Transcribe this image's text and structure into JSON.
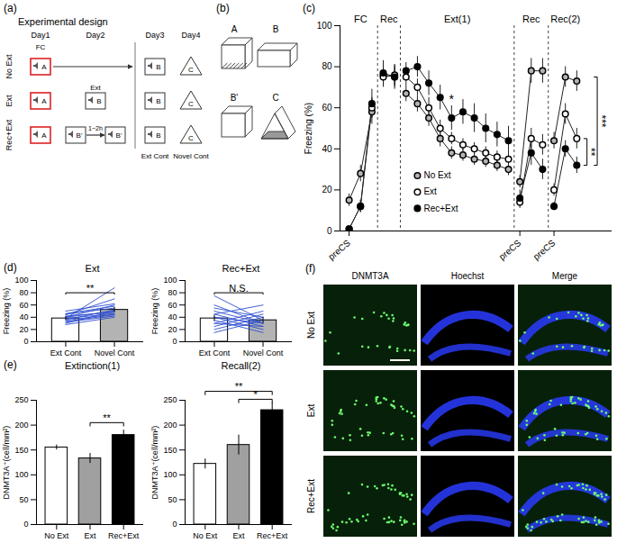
{
  "chart_data": [
    {
      "panel": "(c)",
      "type": "line",
      "ylabel": "Freezing (%)",
      "ylim": [
        0,
        100
      ],
      "yticks": [
        0,
        20,
        40,
        60,
        80,
        100
      ],
      "categories": [
        "preCS",
        null,
        null,
        null,
        null,
        null,
        null,
        null,
        null,
        null,
        null,
        null,
        null,
        null,
        null,
        "preCS",
        null,
        null,
        "preCS",
        null,
        null
      ],
      "sections": [
        "FC",
        "FC",
        "FC",
        "Rec",
        "Rec",
        "Ext(1)",
        "Ext(1)",
        "Ext(1)",
        "Ext(1)",
        "Ext(1)",
        "Ext(1)",
        "Ext(1)",
        "Ext(1)",
        "Ext(1)",
        "Ext(1)",
        "Rec",
        "Rec",
        "Rec",
        "Rec(2)",
        "Rec(2)",
        "Rec(2)"
      ],
      "series": [
        {
          "name": "No Ext",
          "color": "#b3b3b3",
          "marker": "circle",
          "values": [
            15,
            28,
            58,
            76,
            75,
            67,
            62,
            55,
            45,
            38,
            37,
            35,
            34,
            32,
            30,
            24,
            78,
            78,
            44,
            75,
            73
          ],
          "errors": [
            3,
            4,
            6,
            4,
            5,
            4,
            4,
            4,
            4,
            3,
            3,
            3,
            3,
            3,
            3,
            3,
            6,
            6,
            4,
            5,
            5
          ]
        },
        {
          "name": "Ext",
          "color": "#ffffff",
          "marker": "circle",
          "values": [
            1,
            12,
            60,
            75,
            76,
            75,
            70,
            60,
            50,
            45,
            42,
            40,
            38,
            36,
            35,
            14,
            45,
            42,
            20,
            57,
            45
          ],
          "errors": [
            1,
            3,
            5,
            5,
            5,
            4,
            4,
            5,
            4,
            3,
            3,
            3,
            3,
            3,
            3,
            3,
            5,
            5,
            3,
            5,
            5
          ]
        },
        {
          "name": "Rec+Ext",
          "color": "#000000",
          "marker": "circle",
          "values": [
            1,
            12,
            62,
            77,
            75,
            78,
            80,
            72,
            65,
            55,
            58,
            55,
            50,
            47,
            44,
            16,
            38,
            30,
            12,
            40,
            32
          ],
          "errors": [
            1,
            3,
            7,
            6,
            6,
            4,
            5,
            6,
            6,
            6,
            6,
            7,
            7,
            6,
            7,
            4,
            6,
            5,
            2,
            4,
            4
          ]
        }
      ],
      "annotations": [
        {
          "text": "*",
          "x": 9,
          "y": 64
        }
      ],
      "significance": [
        {
          "text": "**",
          "y1": 45,
          "y2": 32
        },
        {
          "text": "***",
          "y1": 75,
          "y2": 32
        }
      ],
      "legend": "bottom"
    },
    {
      "panel": "(d)",
      "type": "bar",
      "title": "Ext",
      "ylabel": "Freezing (%)",
      "ylim": [
        0,
        100
      ],
      "yticks": [
        0,
        20,
        40,
        60,
        80,
        100
      ],
      "categories": [
        "Ext Cont",
        "Novel Cont"
      ],
      "values": [
        38,
        52
      ],
      "errors": [
        3,
        4
      ],
      "colors": [
        "#ffffff",
        "#b3b3b3"
      ],
      "paired_lines": {
        "color": "#2f4fd0",
        "values": [
          [
            35,
            45
          ],
          [
            40,
            60
          ],
          [
            30,
            50
          ],
          [
            45,
            55
          ],
          [
            38,
            88
          ],
          [
            42,
            48
          ],
          [
            28,
            40
          ],
          [
            50,
            62
          ],
          [
            36,
            52
          ],
          [
            33,
            44
          ],
          [
            44,
            70
          ],
          [
            40,
            50
          ],
          [
            32,
            42
          ],
          [
            46,
            58
          ],
          [
            38,
            46
          ]
        ]
      },
      "significance": [
        {
          "from": "Ext Cont",
          "to": "Novel Cont",
          "text": "**",
          "y": 80
        }
      ]
    },
    {
      "type": "bar",
      "title": "Rec+Ext",
      "ylabel": "Freezing (%)",
      "ylim": [
        0,
        100
      ],
      "yticks": [
        0,
        20,
        40,
        60,
        80,
        100
      ],
      "categories": [
        "Ext Cont",
        "Novel Cont"
      ],
      "values": [
        38,
        35
      ],
      "errors": [
        5,
        5
      ],
      "colors": [
        "#ffffff",
        "#b3b3b3"
      ],
      "paired_lines": {
        "color": "#2f4fd0",
        "values": [
          [
            20,
            40
          ],
          [
            60,
            30
          ],
          [
            45,
            25
          ],
          [
            30,
            50
          ],
          [
            75,
            35
          ],
          [
            40,
            20
          ],
          [
            25,
            45
          ],
          [
            55,
            40
          ],
          [
            35,
            15
          ],
          [
            50,
            30
          ],
          [
            15,
            35
          ],
          [
            45,
            60
          ],
          [
            30,
            25
          ],
          [
            40,
            30
          ]
        ]
      },
      "significance": [
        {
          "from": "Ext Cont",
          "to": "Novel Cont",
          "text": "N.S.",
          "y": 80
        }
      ]
    },
    {
      "panel": "(e)",
      "type": "bar",
      "title": "Extinction(1)",
      "ylabel": "DNMT3A⁺(cell/mm²)",
      "ylim": [
        0,
        250
      ],
      "yticks": [
        0,
        50,
        100,
        150,
        200,
        250
      ],
      "categories": [
        "No Ext",
        "Ext",
        "Rec+Ext"
      ],
      "values": [
        155,
        133,
        180
      ],
      "errors": [
        5,
        10,
        10
      ],
      "colors": [
        "#ffffff",
        "#a0a0a0",
        "#000000"
      ],
      "significance": [
        {
          "from": "Ext",
          "to": "Rec+Ext",
          "text": "**",
          "y": 205
        }
      ]
    },
    {
      "type": "bar",
      "title": "Recall(2)",
      "ylabel": "DNMT3A⁺(cell/mm²)",
      "ylim": [
        0,
        250
      ],
      "yticks": [
        0,
        50,
        100,
        150,
        200,
        250
      ],
      "categories": [
        "No Ext",
        "Ext",
        "Rec+Ext"
      ],
      "values": [
        122,
        160,
        230
      ],
      "errors": [
        10,
        20,
        15
      ],
      "colors": [
        "#ffffff",
        "#a0a0a0",
        "#000000"
      ],
      "significance": [
        {
          "from": "Ext",
          "to": "Rec+Ext",
          "text": "*",
          "y": 252
        },
        {
          "from": "No Ext",
          "to": "Rec+Ext",
          "text": "**",
          "y": 268
        }
      ]
    }
  ],
  "diagrams": {
    "a": {
      "label": "(a)",
      "title": "Experimental design",
      "days": [
        "Day1",
        "Day2",
        "Day3",
        "Day4"
      ],
      "conditioning": "FC",
      "extinction": "Ext",
      "interval": "1~2h",
      "context_columns": [
        "Ext Cont",
        "Novel Cont"
      ],
      "rows": [
        {
          "name": "No Ext",
          "contexts": [
            [
              "A"
            ],
            [],
            [
              "B"
            ],
            [
              "C"
            ]
          ]
        },
        {
          "name": "Ext",
          "contexts": [
            [
              "A"
            ],
            [
              "B"
            ],
            [
              "B"
            ],
            [
              "C"
            ]
          ]
        },
        {
          "name": "Rec+Ext",
          "contexts": [
            [
              "A"
            ],
            [
              "B'",
              "B'"
            ],
            [
              "B"
            ],
            [
              "C"
            ]
          ]
        }
      ]
    },
    "b": {
      "label": "(b)",
      "contexts": [
        "A",
        "B",
        "B'",
        "C"
      ]
    },
    "f": {
      "label": "(f)",
      "columns": [
        "DNMT3A",
        "Hoechst",
        "Merge"
      ],
      "rows": [
        "No Ext",
        "Ext",
        "Rec+Ext"
      ]
    }
  }
}
